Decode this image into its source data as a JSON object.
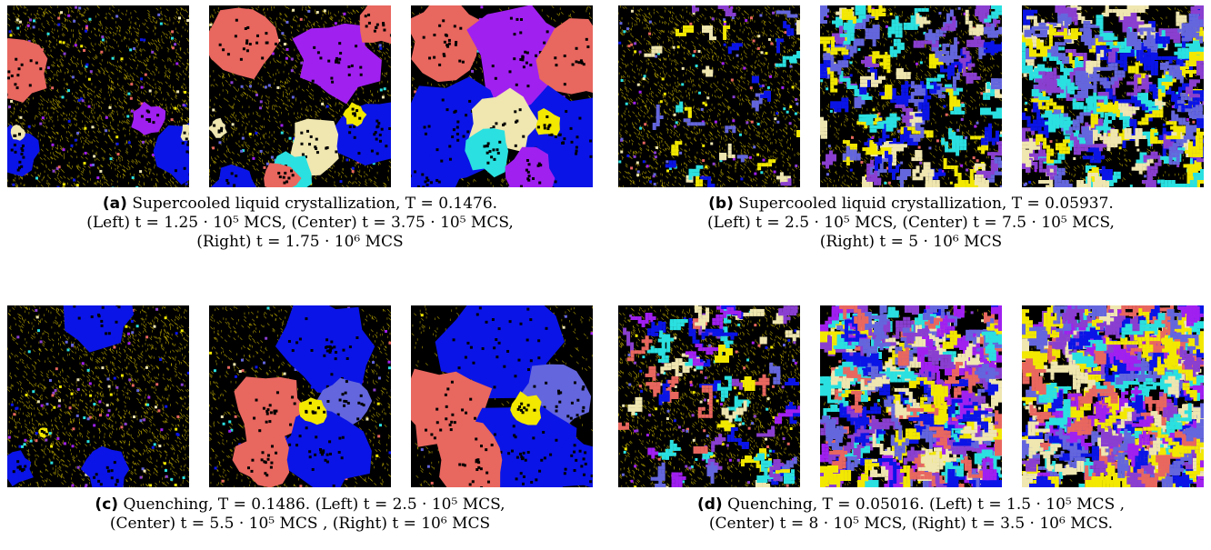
{
  "figures": [
    {
      "tag": "(a)",
      "lines": [
        " Supercooled liquid crystallization, T = 0.1476.",
        "(Left) t = 1.25 · 10⁵ MCS, (Center) t = 3.75 · 10⁵ MCS,",
        "(Right) t = 1.75 · 10⁶ MCS"
      ]
    },
    {
      "tag": "(b)",
      "lines": [
        " Supercooled liquid crystallization, T = 0.05937.",
        "(Left) t = 2.5 · 10⁵ MCS, (Center) t = 7.5 · 10⁵ MCS,",
        "(Right) t = 5 · 10⁶ MCS"
      ]
    },
    {
      "tag": "(c)",
      "lines": [
        " Quenching, T = 0.1486. (Left) t = 2.5 · 10⁵ MCS,",
        "(Center) t = 5.5 · 10⁵ MCS , (Right) t = 10⁶ MCS"
      ]
    },
    {
      "tag": "(d)",
      "lines": [
        " Quenching, T = 0.05016. (Left) t = 1.5 · 10⁵ MCS ,",
        "(Center) t = 8 · 10⁵ MCS, (Right) t = 3.5 · 10⁶ MCS."
      ]
    }
  ],
  "colors": {
    "background": "#000000",
    "liquid_speckle": "#c8b400",
    "salmon": "#e8675f",
    "purple": "#a020f0",
    "blue": "#0a14e6",
    "cream": "#efe6b0",
    "cyan": "#2be0e0",
    "yellow": "#f2e800",
    "slate_blue": "#6466dd",
    "violet": "#8a3fd0"
  }
}
